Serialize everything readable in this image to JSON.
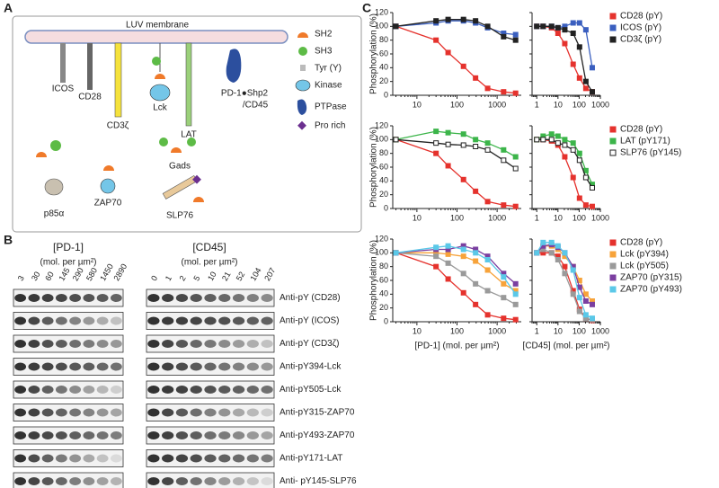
{
  "panel_a": {
    "label": "A",
    "membrane": "LUV membrane",
    "proteins": [
      "ICOS",
      "CD28",
      "CD3ζ",
      "Lck",
      "LAT"
    ],
    "pd1_label": [
      "PD-1●Shp2",
      "/CD45"
    ],
    "adaptors": [
      "p85α",
      "ZAP70",
      "Gads",
      "SLP76"
    ],
    "legend": [
      "SH2",
      "SH3",
      "Tyr (Y)",
      "Kinase",
      "PTPase",
      "Pro rich"
    ]
  },
  "panel_b": {
    "label": "B",
    "pd1": {
      "title": "[PD-1]",
      "unit": "(mol. per µm²)",
      "lanes": [
        "3",
        "30",
        "60",
        "145",
        "290",
        "580",
        "1450",
        "2890"
      ]
    },
    "cd45": {
      "title": "[CD45]",
      "unit": "(mol. per µm²)",
      "lanes": [
        "0",
        "1",
        "2",
        "5",
        "10",
        "21",
        "52",
        "104",
        "207"
      ]
    },
    "rows": [
      "Anti-pY (CD28)",
      "Anti-pY (ICOS)",
      "Anti-pY (CD3ζ)",
      "Anti-pY394-Lck",
      "Anti-pY505-Lck",
      "Anti-pY315-ZAP70",
      "Anti-pY493-ZAP70",
      "Anti-pY171-LAT",
      "Anti- pY145-SLP76"
    ]
  },
  "panel_c": {
    "label": "C"
  },
  "chart_data": [
    {
      "type": "line",
      "ylabel": "Phosphorylation (%)",
      "log_x": true,
      "x": [
        3,
        30,
        60,
        145,
        290,
        580,
        1450,
        2890
      ],
      "xlim": [
        2.5,
        4000
      ],
      "xticks": [
        10,
        100,
        1000
      ],
      "ylim": [
        0,
        120
      ],
      "yticks": [
        0,
        20,
        40,
        60,
        80,
        100,
        120
      ],
      "ytick_labels": true,
      "series": [
        {
          "color": "#e5322d",
          "values": [
            100,
            80,
            62,
            42,
            25,
            10,
            5,
            3
          ]
        },
        {
          "color": "#3a5fbf",
          "values": [
            100,
            105,
            108,
            108,
            105,
            98,
            90,
            88
          ]
        },
        {
          "color": "#222222",
          "values": [
            100,
            108,
            110,
            110,
            108,
            100,
            85,
            80
          ]
        }
      ]
    },
    {
      "type": "line",
      "log_x": true,
      "legend": "right",
      "x": [
        1,
        2,
        5,
        10,
        21,
        52,
        104,
        207,
        414
      ],
      "xlim": [
        0.6,
        1000
      ],
      "xticks": [
        1,
        10,
        100,
        1000
      ],
      "ylim": [
        0,
        120
      ],
      "yticks": [
        0,
        20,
        40,
        60,
        80,
        100,
        120
      ],
      "ytick_labels": false,
      "series": [
        {
          "name": "CD28 (pY)",
          "color": "#e5322d",
          "values": [
            100,
            100,
            98,
            90,
            75,
            45,
            25,
            10,
            5
          ]
        },
        {
          "name": "ICOS (pY)",
          "color": "#3a5fbf",
          "values": [
            100,
            100,
            100,
            98,
            100,
            105,
            105,
            95,
            40
          ]
        },
        {
          "name": "CD3ζ (pY)",
          "color": "#222222",
          "values": [
            100,
            100,
            100,
            98,
            95,
            90,
            70,
            20,
            5
          ]
        }
      ]
    },
    {
      "type": "line",
      "ylabel": "Phosphorylation (%)",
      "log_x": true,
      "x": [
        3,
        30,
        60,
        145,
        290,
        580,
        1450,
        2890
      ],
      "xlim": [
        2.5,
        4000
      ],
      "xticks": [
        10,
        100,
        1000
      ],
      "ylim": [
        0,
        120
      ],
      "yticks": [
        0,
        20,
        40,
        60,
        80,
        100,
        120
      ],
      "ytick_labels": true,
      "series": [
        {
          "color": "#e5322d",
          "values": [
            100,
            80,
            62,
            42,
            25,
            10,
            5,
            3
          ]
        },
        {
          "color": "#3cb54a",
          "values": [
            100,
            112,
            110,
            108,
            100,
            95,
            85,
            75
          ]
        },
        {
          "color": "#222222",
          "marker": "open",
          "values": [
            100,
            95,
            93,
            92,
            90,
            85,
            70,
            58
          ]
        }
      ]
    },
    {
      "type": "line",
      "log_x": true,
      "legend": "right",
      "x": [
        1,
        2,
        5,
        10,
        21,
        52,
        104,
        207,
        414
      ],
      "xlim": [
        0.6,
        1000
      ],
      "xticks": [
        1,
        10,
        100,
        1000
      ],
      "ylim": [
        0,
        120
      ],
      "yticks": [
        0,
        20,
        40,
        60,
        80,
        100,
        120
      ],
      "ytick_labels": false,
      "series": [
        {
          "name": "CD28 (pY)",
          "color": "#e5322d",
          "values": [
            100,
            100,
            98,
            92,
            75,
            45,
            15,
            5,
            3
          ]
        },
        {
          "name": "LAT (pY171)",
          "color": "#3cb54a",
          "values": [
            100,
            105,
            108,
            105,
            100,
            95,
            80,
            55,
            35
          ]
        },
        {
          "name": "SLP76 (pY145)",
          "color": "#222222",
          "marker": "open",
          "values": [
            100,
            100,
            100,
            95,
            92,
            85,
            70,
            45,
            30
          ]
        }
      ]
    },
    {
      "type": "line",
      "ylabel": "Phosphorylation (%)",
      "xlabel": "[PD-1] (mol. per µm²)",
      "log_x": true,
      "x": [
        3,
        30,
        60,
        145,
        290,
        580,
        1450,
        2890
      ],
      "xlim": [
        2.5,
        4000
      ],
      "xticks": [
        10,
        100,
        1000
      ],
      "ylim": [
        0,
        120
      ],
      "yticks": [
        0,
        20,
        40,
        60,
        80,
        100,
        120
      ],
      "ytick_labels": true,
      "series": [
        {
          "color": "#e5322d",
          "values": [
            100,
            80,
            62,
            42,
            25,
            10,
            5,
            3
          ]
        },
        {
          "color": "#f7a33a",
          "values": [
            100,
            100,
            98,
            95,
            88,
            75,
            55,
            45
          ]
        },
        {
          "color": "#9a9a9a",
          "values": [
            100,
            95,
            85,
            70,
            55,
            45,
            35,
            25
          ]
        },
        {
          "color": "#7b3fa0",
          "values": [
            100,
            105,
            105,
            110,
            105,
            95,
            70,
            55
          ]
        },
        {
          "color": "#5bc8e8",
          "values": [
            100,
            108,
            110,
            105,
            100,
            90,
            65,
            40
          ]
        }
      ]
    },
    {
      "type": "line",
      "xlabel": "[CD45] (mol. per µm²)",
      "log_x": true,
      "legend": "right",
      "x": [
        1,
        2,
        5,
        10,
        21,
        52,
        104,
        207,
        414
      ],
      "xlim": [
        0.6,
        1000
      ],
      "xticks": [
        1,
        10,
        100,
        1000
      ],
      "ylim": [
        0,
        120
      ],
      "yticks": [
        0,
        20,
        40,
        60,
        80,
        100,
        120
      ],
      "ytick_labels": false,
      "series": [
        {
          "name": "CD28 (pY)",
          "color": "#e5322d",
          "values": [
            100,
            100,
            100,
            95,
            80,
            45,
            18,
            5,
            2
          ]
        },
        {
          "name": "Lck (pY394)",
          "color": "#f7a33a",
          "values": [
            100,
            110,
            110,
            105,
            95,
            80,
            60,
            40,
            30
          ]
        },
        {
          "name": "Lck (pY505)",
          "color": "#9a9a9a",
          "values": [
            100,
            105,
            100,
            90,
            70,
            40,
            15,
            5,
            3
          ]
        },
        {
          "name": "ZAP70 (pY315)",
          "color": "#7b3fa0",
          "values": [
            100,
            110,
            112,
            108,
            100,
            80,
            50,
            30,
            25
          ]
        },
        {
          "name": "ZAP70 (pY493)",
          "color": "#5bc8e8",
          "values": [
            100,
            115,
            115,
            110,
            100,
            75,
            35,
            10,
            5
          ]
        }
      ]
    }
  ]
}
